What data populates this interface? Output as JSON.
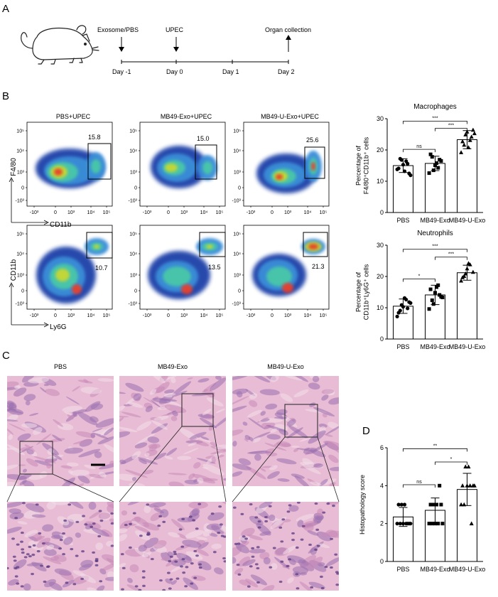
{
  "panels": {
    "a": "A",
    "b": "B",
    "c": "C",
    "d": "D"
  },
  "timeline": {
    "events": [
      {
        "label": "Exosome/PBS",
        "day": -1,
        "arrow": "down"
      },
      {
        "label": "UPEC",
        "day": 0,
        "arrow": "down"
      },
      {
        "label": "Organ collection",
        "day": 2,
        "arrow": "up"
      }
    ],
    "days": [
      "Day -1",
      "Day 0",
      "Day 1",
      "Day 2"
    ]
  },
  "flow": {
    "columns": [
      "PBS+UPEC",
      "MB49-Exo+UPEC",
      "MB49-U-Exo+UPEC"
    ],
    "row1": {
      "ylabel": "F4/80",
      "xlabel": "CD11b",
      "values": [
        "15.8",
        "15.0",
        "25.6"
      ]
    },
    "row2": {
      "ylabel": "CD11b",
      "xlabel": "Ly6G",
      "values": [
        "10.7",
        "13.5",
        "21.3"
      ]
    },
    "yticks": [
      "10⁵",
      "10⁴",
      "10³",
      "0",
      "-10³"
    ],
    "xticks": [
      "-10³",
      "0",
      "10³",
      "10⁴",
      "10⁵"
    ]
  },
  "histology": {
    "columns": [
      "PBS",
      "MB49-Exo",
      "MB49-U-Exo"
    ],
    "colors": {
      "pink": "#e8bcd4",
      "purple": "#9a6fae",
      "light": "#f2dfe9"
    }
  },
  "chart_data": [
    {
      "type": "bar",
      "title": "Macrophages",
      "ylabel_lines": [
        "Percentage of",
        "F4/80⁺CD11b⁺ cells"
      ],
      "categories": [
        "PBS",
        "MB49-Exo",
        "MB49-U-Exo"
      ],
      "values": [
        15,
        15.7,
        23.3
      ],
      "errors": [
        2.2,
        2.3,
        2.9
      ],
      "ylim": [
        0,
        30
      ],
      "yticks": [
        0,
        10,
        20,
        30
      ],
      "points": [
        [
          13.8,
          17.2,
          15.3,
          16.4,
          12.5,
          14.1,
          16.8,
          13.2,
          15.6,
          11.9
        ],
        [
          12.6,
          17.8,
          15.1,
          14.3,
          16.5,
          18.6,
          13.5,
          15.8,
          16.9
        ],
        [
          19.2,
          21.6,
          25.8,
          23.1,
          26.4,
          22.7,
          24.9,
          20.8,
          24.2,
          25.3
        ]
      ],
      "markers": [
        "circle",
        "square",
        "triangle"
      ],
      "sig": [
        {
          "a": 0,
          "b": 1,
          "label": "ns",
          "y": 20.2
        },
        {
          "a": 1,
          "b": 2,
          "label": "***",
          "y": 26.9
        },
        {
          "a": 0,
          "b": 2,
          "label": "***",
          "y": 29.2
        }
      ]
    },
    {
      "type": "bar",
      "title": "Neutrophils",
      "ylabel_lines": [
        "Percentage of",
        "CD11b⁺Ly6G⁺ cells"
      ],
      "categories": [
        "PBS",
        "MB49-Exo",
        "MB49-U-Exo"
      ],
      "values": [
        10.5,
        14.1,
        21.2
      ],
      "errors": [
        2.3,
        3.1,
        2.4
      ],
      "ylim": [
        0,
        30
      ],
      "yticks": [
        0,
        10,
        20,
        30
      ],
      "points": [
        [
          7.2,
          9.1,
          10.3,
          12.6,
          11.8,
          8.4,
          10.9,
          13.1,
          9.8,
          11.5
        ],
        [
          9.6,
          12.4,
          14.8,
          17.2,
          13.5,
          15.9,
          11.2,
          16.6,
          14.1,
          13.3
        ],
        [
          18.6,
          20.1,
          22.5,
          23.8,
          21.4,
          19.7,
          20.9,
          24.2
        ]
      ],
      "markers": [
        "circle",
        "square",
        "triangle"
      ],
      "sig": [
        {
          "a": 0,
          "b": 1,
          "label": "*",
          "y": 19.2
        },
        {
          "a": 1,
          "b": 2,
          "label": "***",
          "y": 26.2
        },
        {
          "a": 0,
          "b": 2,
          "label": "***",
          "y": 28.7
        }
      ]
    },
    {
      "type": "bar",
      "title": "",
      "ylabel_lines": [
        "Histopathology score"
      ],
      "categories": [
        "PBS",
        "MB49-Exo",
        "MB49-U-Exo"
      ],
      "values": [
        2.35,
        2.7,
        3.8
      ],
      "errors": [
        0.5,
        0.65,
        0.85
      ],
      "ylim": [
        0,
        6
      ],
      "yticks": [
        0,
        2,
        4,
        6
      ],
      "points": [
        [
          2,
          2,
          2,
          2,
          2,
          3,
          3,
          3,
          2,
          2
        ],
        [
          2,
          2,
          2,
          2,
          3,
          3,
          3,
          3,
          4,
          2
        ],
        [
          3,
          3,
          4,
          4,
          4,
          4,
          5,
          5,
          2,
          4
        ]
      ],
      "markers": [
        "circle",
        "square",
        "triangle"
      ],
      "sig": [
        {
          "a": 0,
          "b": 1,
          "label": "ns",
          "y": 4.05
        },
        {
          "a": 1,
          "b": 2,
          "label": "*",
          "y": 5.25
        },
        {
          "a": 0,
          "b": 2,
          "label": "**",
          "y": 5.95
        }
      ]
    }
  ]
}
